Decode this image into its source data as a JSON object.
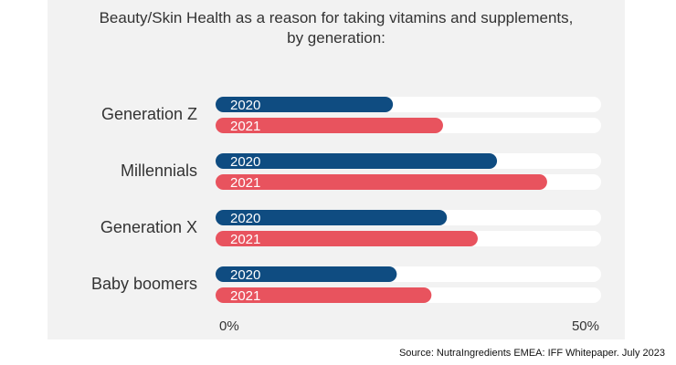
{
  "title_lines": [
    "Beauty/Skin Health as a reason for taking vitamins and supplements,",
    "by generation:"
  ],
  "source": "Source: NutraIngredients EMEA: IFF Whitepaper. July 2023",
  "colors": {
    "series_2020": "#0f4c81",
    "series_2021": "#e8535e",
    "track": "#ffffff",
    "panel": "#f2f2f2",
    "text": "#333333"
  },
  "chart_data": {
    "type": "bar",
    "orientation": "horizontal",
    "title": "Beauty/Skin Health as a reason for taking vitamins and supplements, by generation:",
    "categories": [
      "Generation Z",
      "Millennials",
      "Generation X",
      "Baby boomers"
    ],
    "series": [
      {
        "name": "2020",
        "values": [
          23,
          36.5,
          30,
          23.5
        ]
      },
      {
        "name": "2021",
        "values": [
          29.5,
          43,
          34,
          28
        ]
      }
    ],
    "xlim": [
      0,
      50
    ],
    "tick_labels": [
      "0%",
      "50%"
    ],
    "xlabel": "",
    "ylabel": "",
    "grid": false,
    "legend": "inline labels inside bars"
  }
}
